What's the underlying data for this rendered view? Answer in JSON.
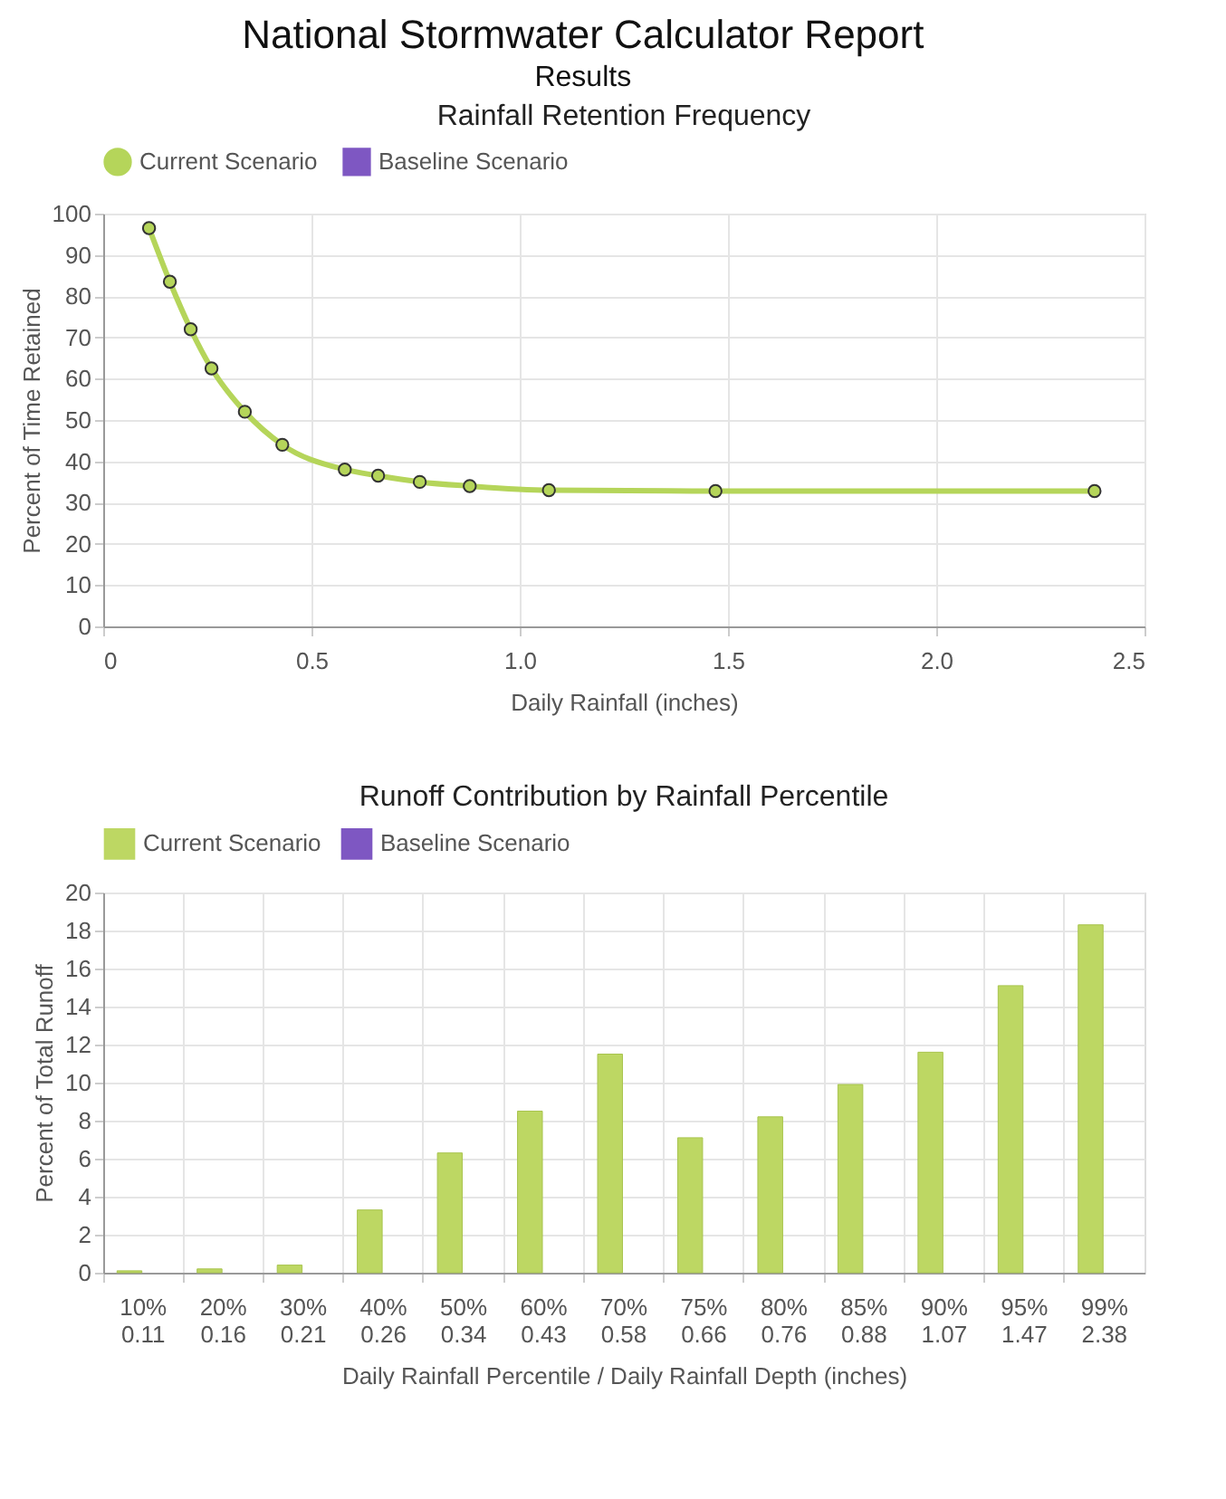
{
  "chart_data": [
    {
      "type": "line",
      "title": "Rainfall Retention Frequency",
      "annotations": [
        "National Stormwater Calculator Report",
        "Results"
      ],
      "xlabel": "Daily Rainfall (inches)",
      "ylabel": "Percent of Time Retained",
      "x": [
        0.11,
        0.16,
        0.21,
        0.26,
        0.34,
        0.43,
        0.58,
        0.66,
        0.76,
        0.88,
        1.07,
        1.47,
        2.38
      ],
      "series": [
        {
          "name": "Current Scenario",
          "color": "#b5d55a",
          "marker": "circle",
          "values": [
            96.5,
            83.5,
            72,
            62.5,
            52,
            44,
            38,
            36.5,
            35,
            34,
            33,
            32.8,
            32.8
          ]
        },
        {
          "name": "Baseline Scenario",
          "color": "#7e57c2",
          "marker": "square",
          "values": [
            null,
            null,
            null,
            null,
            null,
            null,
            null,
            null,
            null,
            null,
            null,
            null,
            null
          ]
        }
      ],
      "xlim": [
        0,
        2.5
      ],
      "xticks": [
        0,
        0.5,
        {
          "value": 1,
          "label": "1.0"
        },
        1.5,
        {
          "value": 2,
          "label": "2.0"
        },
        2.5
      ],
      "ylim": [
        0,
        100
      ],
      "yticks": [
        0,
        10,
        20,
        30,
        40,
        50,
        60,
        70,
        80,
        90,
        100
      ],
      "grid": true,
      "legend": "top",
      "line_style": "solid"
    },
    {
      "type": "bar",
      "title": "Runoff Contribution by Rainfall Percentile",
      "xlabel": "Daily Rainfall Percentile  / Daily Rainfall Depth (inches)",
      "ylabel": "Percent of Total Runoff",
      "categories": [
        "10%\n0.11",
        "20%\n0.16",
        "30%\n0.21",
        "40%\n0.26",
        "50%\n0.34",
        "60%\n0.43",
        "70%\n0.58",
        "75%\n0.66",
        "80%\n0.76",
        "85%\n0.88",
        "90%\n1.07",
        "95%\n1.47",
        "99%\n2.38"
      ],
      "series": [
        {
          "name": "Current Scenario",
          "color": "#bdd763",
          "values": [
            0.1,
            0.2,
            0.4,
            3.3,
            6.3,
            8.5,
            11.5,
            7.1,
            8.2,
            9.9,
            11.6,
            15.1,
            18.3
          ]
        },
        {
          "name": "Baseline Scenario",
          "color": "#7e57c2",
          "values": [
            null,
            null,
            null,
            null,
            null,
            null,
            null,
            null,
            null,
            null,
            null,
            null,
            null
          ]
        }
      ],
      "ylim": [
        0,
        20
      ],
      "yticks": [
        0,
        2,
        4,
        6,
        8,
        10,
        12,
        14,
        16,
        18,
        20
      ],
      "grid": true,
      "legend": "top"
    }
  ]
}
